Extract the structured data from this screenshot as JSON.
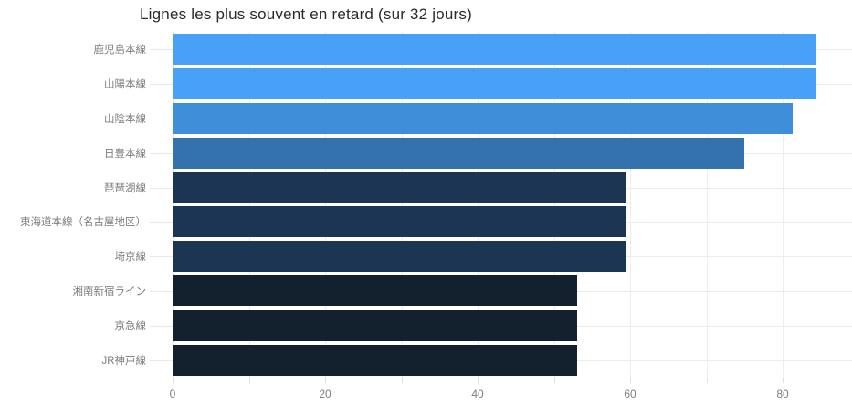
{
  "chart_data": {
    "type": "bar",
    "orientation": "horizontal",
    "title": "Lignes les plus souvent en retard (sur 32 jours)",
    "categories": [
      "鹿児島本線",
      "山陽本線",
      "山陰本線",
      "日豊本線",
      "琵琶湖線",
      "東海道本線（名古屋地区）",
      "埼京線",
      "湘南新宿ライン",
      "京急線",
      "JR神戸線"
    ],
    "values": [
      84.4,
      84.4,
      81.3,
      75.0,
      59.4,
      59.4,
      59.4,
      53.1,
      53.1,
      53.1
    ],
    "bar_colors": [
      "#48A0F7",
      "#48A0F7",
      "#3F8EDA",
      "#3472AE",
      "#1B3553",
      "#1B3553",
      "#1B3553",
      "#13212F",
      "#13212F",
      "#13212F"
    ],
    "xlabel": "",
    "ylabel": "",
    "x_tick_labels": [
      0,
      20,
      40,
      60,
      80
    ],
    "x_minor_tick_step": 10,
    "xlim": [
      0,
      89.1
    ],
    "grid": "on",
    "legend": "none",
    "colors": {
      "background": "#ffffff",
      "gridline": "#ececec",
      "axis_line": "#e8e8e8",
      "tick": "#e0e0e0",
      "title_text": "#2b2b2b",
      "axis_text": "#7c7c7c"
    }
  }
}
